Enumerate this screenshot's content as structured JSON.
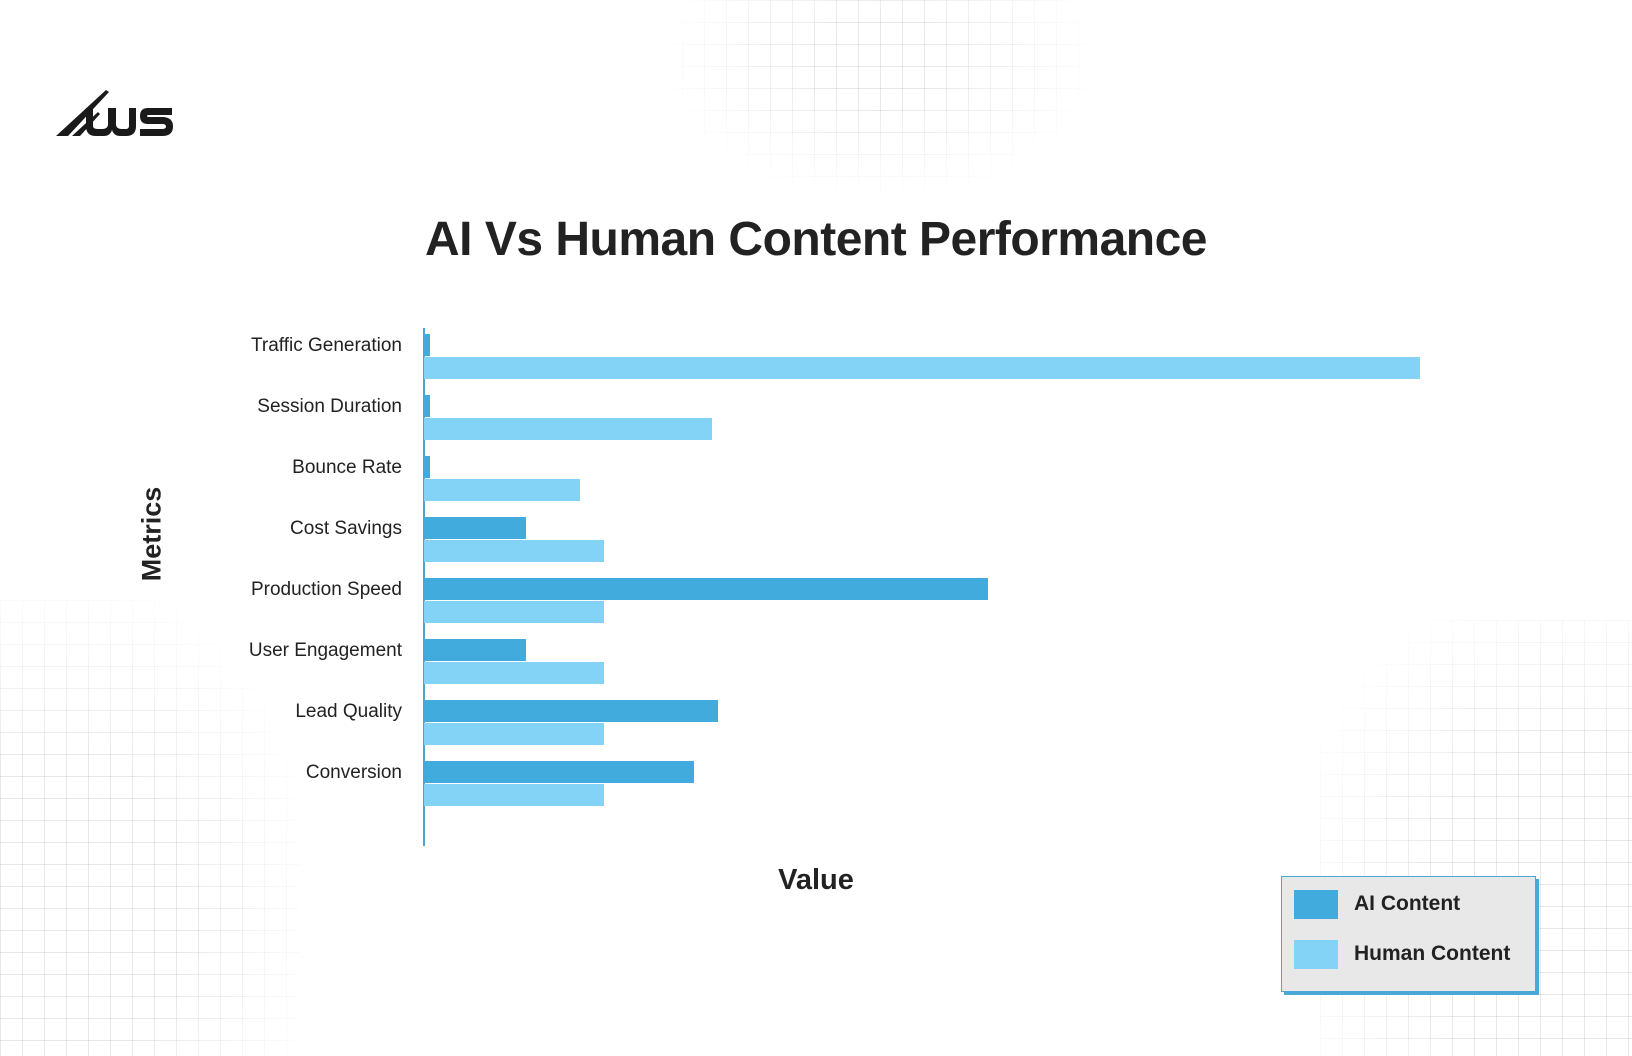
{
  "brand": {
    "logo_text": "WS",
    "logo_icon": "ws-logo-icon"
  },
  "colors": {
    "ai": "#42abdd",
    "human": "#83d3f7",
    "axis": "#4aa8d6",
    "legend_bg": "#e8e8e8",
    "text": "#222222"
  },
  "chart_data": {
    "type": "bar",
    "orientation": "horizontal",
    "title": "AI Vs Human Content Performance",
    "xlabel": "Value",
    "ylabel": "Metrics",
    "units": "relative (no tick labels shown)",
    "categories": [
      "Traffic Generation",
      "Session Duration",
      "Bounce Rate",
      "Cost Savings",
      "Production Speed",
      "User Engagement",
      "Lead Quality",
      "Conversion"
    ],
    "series": [
      {
        "name": "AI Content",
        "color": "#42abdd",
        "values": [
          1,
          1,
          1,
          17,
          94,
          17,
          49,
          45
        ]
      },
      {
        "name": "Human Content",
        "color": "#83d3f7",
        "values": [
          166,
          48,
          26,
          30,
          30,
          30,
          30,
          30
        ]
      }
    ],
    "xlim": [
      0,
      180
    ],
    "grid": false,
    "legend_position": "lower right"
  },
  "legend": {
    "items": [
      {
        "label": "AI Content"
      },
      {
        "label": "Human Content"
      }
    ]
  }
}
